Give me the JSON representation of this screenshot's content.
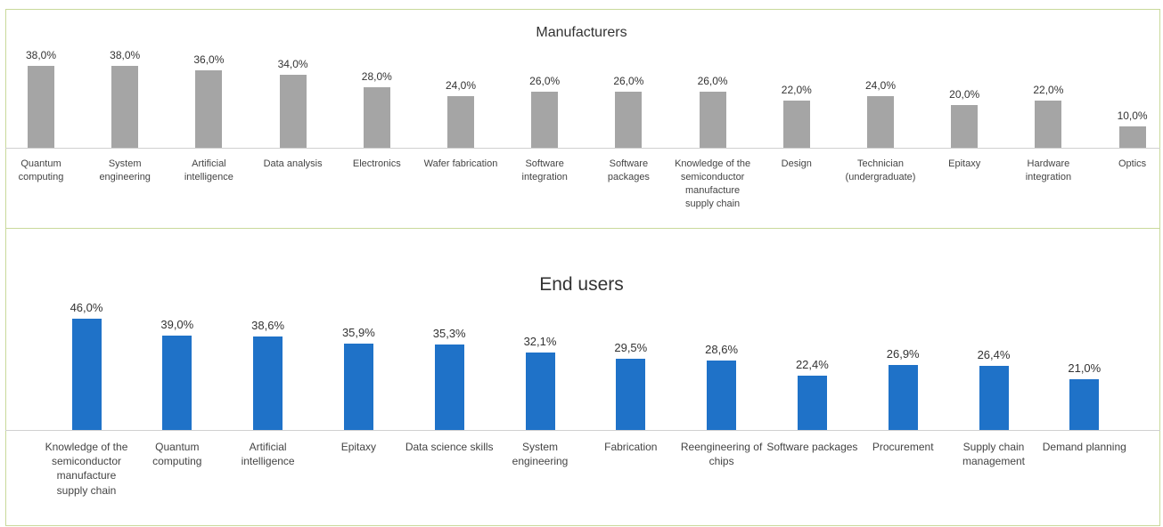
{
  "chart_data": [
    {
      "type": "bar",
      "title": "Manufacturers",
      "color": "#a5a5a5",
      "categories": [
        "Quantum computing",
        "System engineering",
        "Artificial intelligence",
        "Data analysis",
        "Electronics",
        "Wafer fabrication",
        "Software integration",
        "Software packages",
        "Knowledge of the semiconductor manufacture supply chain",
        "Design",
        "Technician (undergraduate)",
        "Epitaxy",
        "Hardware integration",
        "Optics"
      ],
      "values": [
        38,
        38,
        36,
        34,
        28,
        24,
        26,
        26,
        26,
        22,
        24,
        20,
        22,
        10
      ],
      "value_labels": [
        "38,0%",
        "38,0%",
        "36,0%",
        "34,0%",
        "28,0%",
        "24,0%",
        "26,0%",
        "26,0%",
        "26,0%",
        "22,0%",
        "24,0%",
        "20,0%",
        "22,0%",
        "10,0%"
      ]
    },
    {
      "type": "bar",
      "title": "End users",
      "color": "#1f72c8",
      "categories": [
        "Knowledge of the semiconductor manufacture supply chain",
        "Quantum computing",
        "Artificial intelligence",
        "Epitaxy",
        "Data science skills",
        "System engineering",
        "Fabrication",
        "Reengineering of chips",
        "Software packages",
        "Procurement",
        "Supply chain management",
        "Demand planning"
      ],
      "values": [
        46.0,
        39.0,
        38.6,
        35.9,
        35.3,
        32.1,
        29.5,
        28.6,
        22.4,
        26.9,
        26.4,
        21.0
      ],
      "value_labels": [
        "46,0%",
        "39,0%",
        "38,6%",
        "35,9%",
        "35,3%",
        "32,1%",
        "29,5%",
        "28,6%",
        "22,4%",
        "26,9%",
        "26,4%",
        "21,0%"
      ]
    }
  ]
}
